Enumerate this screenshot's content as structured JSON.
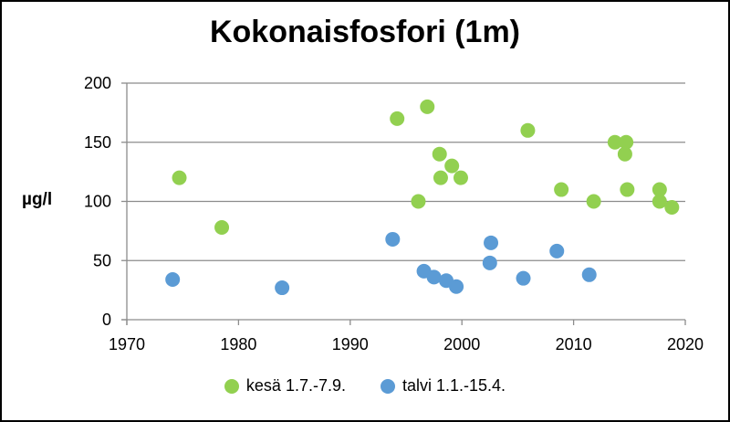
{
  "chart_data": {
    "type": "scatter",
    "title": "Kokonaisfosfori (1m)",
    "ylabel": "µg/l",
    "xlabel": "",
    "xlim": [
      1970,
      2020
    ],
    "ylim": [
      0,
      200
    ],
    "xticks": [
      1970,
      1980,
      1990,
      2000,
      2010,
      2020
    ],
    "yticks": [
      0,
      50,
      100,
      150,
      200
    ],
    "grid": "horizontal",
    "legend": "bottom",
    "series": [
      {
        "name": "kesä 1.7.-7.9.",
        "color": "#92d050",
        "points": [
          [
            1974.7,
            120
          ],
          [
            1978.5,
            78
          ],
          [
            1994.2,
            170
          ],
          [
            1996.9,
            180
          ],
          [
            1996.1,
            100
          ],
          [
            1998.0,
            140
          ],
          [
            1998.1,
            120
          ],
          [
            1999.1,
            130
          ],
          [
            1999.9,
            120
          ],
          [
            2005.9,
            160
          ],
          [
            2008.9,
            110
          ],
          [
            2011.8,
            100
          ],
          [
            2013.7,
            150
          ],
          [
            2014.7,
            150
          ],
          [
            2014.6,
            140
          ],
          [
            2014.8,
            110
          ],
          [
            2017.7,
            110
          ],
          [
            2017.7,
            100
          ],
          [
            2018.8,
            95
          ]
        ]
      },
      {
        "name": "talvi 1.1.-15.4.",
        "color": "#5b9bd5",
        "points": [
          [
            1974.1,
            34
          ],
          [
            1983.9,
            27
          ],
          [
            1993.8,
            68
          ],
          [
            1996.6,
            41
          ],
          [
            1997.5,
            36
          ],
          [
            1998.6,
            33
          ],
          [
            1999.5,
            28
          ],
          [
            2002.5,
            48
          ],
          [
            2002.6,
            65
          ],
          [
            2005.5,
            35
          ],
          [
            2008.5,
            58
          ],
          [
            2011.4,
            38
          ]
        ]
      }
    ]
  }
}
